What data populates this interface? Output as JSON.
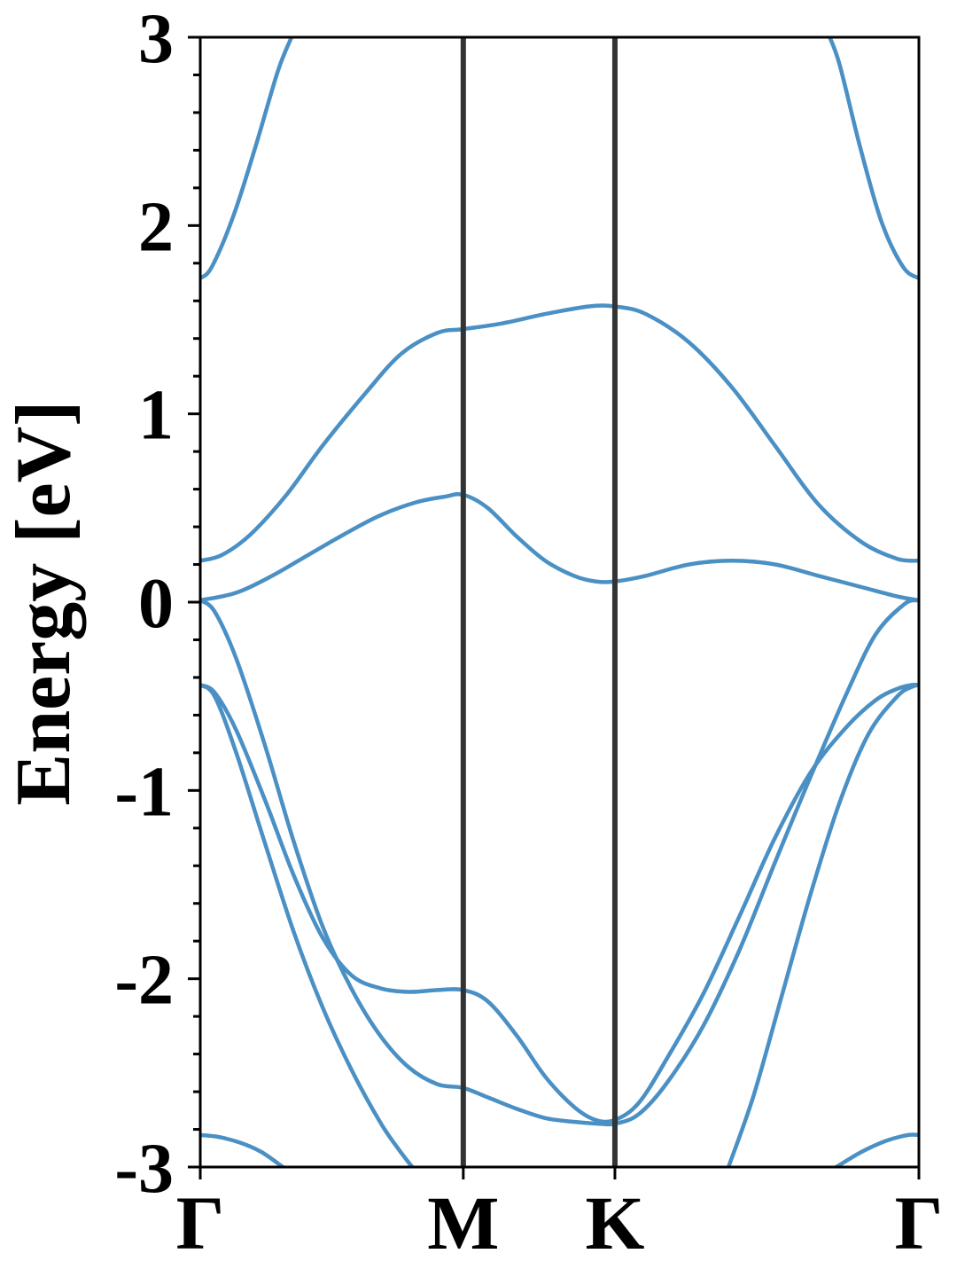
{
  "chart_data": {
    "type": "line",
    "xlabel": "",
    "ylabel": "Energy [eV]",
    "ylim": [
      -3,
      3
    ],
    "xlim": [
      0,
      1
    ],
    "grid": false,
    "legend": "none",
    "yticks": [
      {
        "value": 3,
        "label": "3"
      },
      {
        "value": 2,
        "label": "2"
      },
      {
        "value": 1,
        "label": "1"
      },
      {
        "value": 0,
        "label": "0"
      },
      {
        "value": -1,
        "label": "-1"
      },
      {
        "value": -2,
        "label": "-2"
      },
      {
        "value": -3,
        "label": "-3"
      }
    ],
    "kpoints": [
      {
        "label": "Γ",
        "x": 0.0
      },
      {
        "label": "M",
        "x": 0.366
      },
      {
        "label": "K",
        "x": 0.577
      },
      {
        "label": "Γ",
        "x": 1.0
      }
    ],
    "band_color": "#4a90c4",
    "kline_color": "#333333",
    "series": [
      {
        "x": [
          0.0,
          0.016,
          0.046,
          0.077,
          0.108,
          0.127
        ],
        "y": [
          1.72,
          1.78,
          2.05,
          2.42,
          2.82,
          3.0
        ]
      },
      {
        "x": [
          0.876,
          0.89,
          0.918,
          0.948,
          0.978,
          1.0
        ],
        "y": [
          3.0,
          2.85,
          2.42,
          2.02,
          1.78,
          1.72
        ]
      },
      {
        "x": [
          0.0,
          0.03,
          0.07,
          0.12,
          0.17,
          0.23,
          0.28,
          0.33,
          0.366,
          0.42,
          0.48,
          0.54,
          0.577,
          0.62,
          0.68,
          0.74,
          0.8,
          0.86,
          0.92,
          0.97,
          1.0
        ],
        "y": [
          0.22,
          0.25,
          0.36,
          0.57,
          0.83,
          1.11,
          1.32,
          1.43,
          1.45,
          1.48,
          1.53,
          1.57,
          1.57,
          1.53,
          1.38,
          1.14,
          0.83,
          0.52,
          0.32,
          0.23,
          0.22
        ]
      },
      {
        "x": [
          0.0,
          0.05,
          0.1,
          0.15,
          0.2,
          0.25,
          0.3,
          0.34,
          0.366,
          0.4,
          0.44,
          0.48,
          0.52,
          0.55,
          0.577,
          0.62,
          0.68,
          0.74,
          0.8,
          0.86,
          0.92,
          0.97,
          1.0
        ],
        "y": [
          0.01,
          0.05,
          0.14,
          0.25,
          0.36,
          0.46,
          0.53,
          0.56,
          0.57,
          0.5,
          0.35,
          0.22,
          0.14,
          0.11,
          0.11,
          0.14,
          0.2,
          0.22,
          0.2,
          0.14,
          0.08,
          0.03,
          0.01
        ]
      },
      {
        "x": [
          0.0,
          0.02,
          0.05,
          0.09,
          0.13,
          0.17,
          0.21,
          0.25,
          0.29,
          0.33,
          0.366,
          0.4,
          0.44,
          0.48,
          0.52,
          0.555,
          0.577,
          0.61,
          0.65,
          0.7,
          0.75,
          0.8,
          0.85,
          0.9,
          0.94,
          0.98,
          1.0
        ],
        "y": [
          0.01,
          -0.05,
          -0.3,
          -0.76,
          -1.27,
          -1.72,
          -2.05,
          -2.3,
          -2.47,
          -2.56,
          -2.58,
          -2.63,
          -2.69,
          -2.74,
          -2.76,
          -2.77,
          -2.77,
          -2.72,
          -2.55,
          -2.25,
          -1.85,
          -1.38,
          -0.92,
          -0.48,
          -0.17,
          -0.01,
          0.01
        ]
      },
      {
        "x": [
          0.0,
          0.02,
          0.05,
          0.09,
          0.13,
          0.17,
          0.21,
          0.25,
          0.29,
          0.33,
          0.366,
          0.4,
          0.44,
          0.48,
          0.52,
          0.55,
          0.577,
          0.61,
          0.65,
          0.7,
          0.75,
          0.8,
          0.85,
          0.9,
          0.94,
          0.97,
          0.99,
          1.0
        ],
        "y": [
          -0.44,
          -0.48,
          -0.68,
          -1.05,
          -1.45,
          -1.78,
          -1.98,
          -2.05,
          -2.07,
          -2.06,
          -2.06,
          -2.12,
          -2.3,
          -2.52,
          -2.68,
          -2.75,
          -2.75,
          -2.66,
          -2.42,
          -2.08,
          -1.67,
          -1.25,
          -0.9,
          -0.66,
          -0.52,
          -0.46,
          -0.44,
          -0.44
        ]
      },
      {
        "x": [
          0.0,
          0.02,
          0.05,
          0.09,
          0.13,
          0.17,
          0.21,
          0.25,
          0.275,
          0.295
        ],
        "y": [
          -0.44,
          -0.5,
          -0.8,
          -1.28,
          -1.75,
          -2.15,
          -2.48,
          -2.76,
          -2.9,
          -3.0
        ]
      },
      {
        "x": [
          0.735,
          0.77,
          0.81,
          0.85,
          0.89,
          0.93,
          0.97,
          0.99,
          1.0
        ],
        "y": [
          -3.0,
          -2.62,
          -2.08,
          -1.54,
          -1.06,
          -0.7,
          -0.5,
          -0.45,
          -0.44
        ]
      },
      {
        "x": [
          0.0,
          0.025,
          0.055,
          0.085,
          0.115
        ],
        "y": [
          -2.83,
          -2.84,
          -2.87,
          -2.92,
          -3.0
        ]
      },
      {
        "x": [
          0.885,
          0.92,
          0.955,
          0.985,
          1.0
        ],
        "y": [
          -3.0,
          -2.92,
          -2.86,
          -2.83,
          -2.83
        ]
      }
    ]
  }
}
